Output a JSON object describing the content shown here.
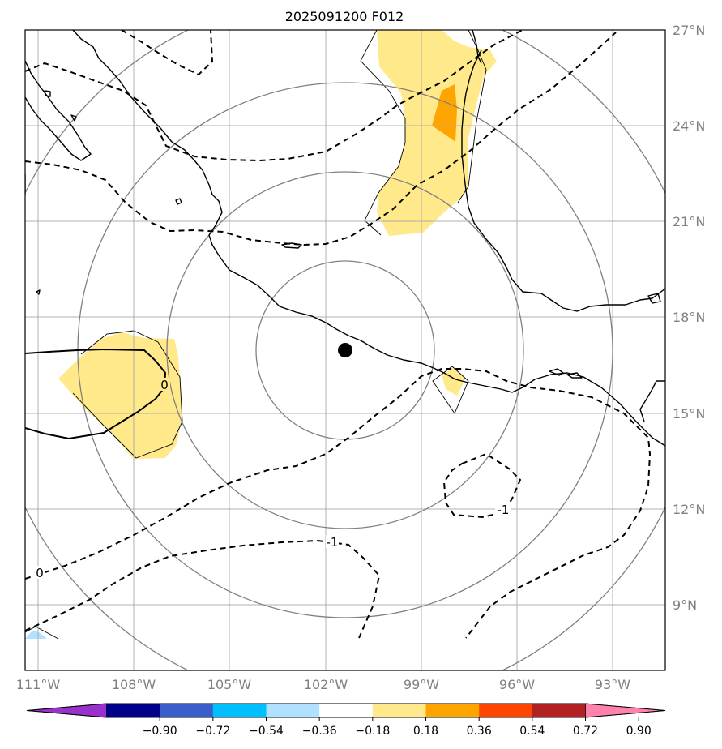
{
  "title": "2025091200 F012",
  "latitude_labels": [
    "27°N",
    "24°N",
    "21°N",
    "18°N",
    "15°N",
    "12°N",
    "9°N"
  ],
  "longitude_labels": [
    "111°W",
    "108°W",
    "105°W",
    "102°W",
    "99°W",
    "96°W",
    "93°W"
  ],
  "colorbar": {
    "colors": [
      "#9932cc",
      "#00008b",
      "#3a5fcd",
      "#00bfff",
      "#b0e2ff",
      "#ffffff",
      "#ffe98a",
      "#ffa500",
      "#ff4500",
      "#b22222",
      "#ff82ab"
    ],
    "tick_labels": [
      "−0.90",
      "−0.72",
      "−0.54",
      "−0.36",
      "−0.18",
      "0.18",
      "0.36",
      "0.54",
      "0.72",
      "0.90"
    ],
    "extend": "both"
  },
  "contour_labels": {
    "zero_west": "0",
    "zero_low": "0",
    "minus_one_south": "-1",
    "minus_one_east": "-1"
  },
  "marker": "storm-center-dot",
  "colors": {
    "positive_light": "#ffe98a",
    "positive_strong": "#ffa500",
    "negative_light": "#b0e2ff",
    "coast": "#000000",
    "grid": "#b0b0b0",
    "range_rings": "#808080"
  }
}
